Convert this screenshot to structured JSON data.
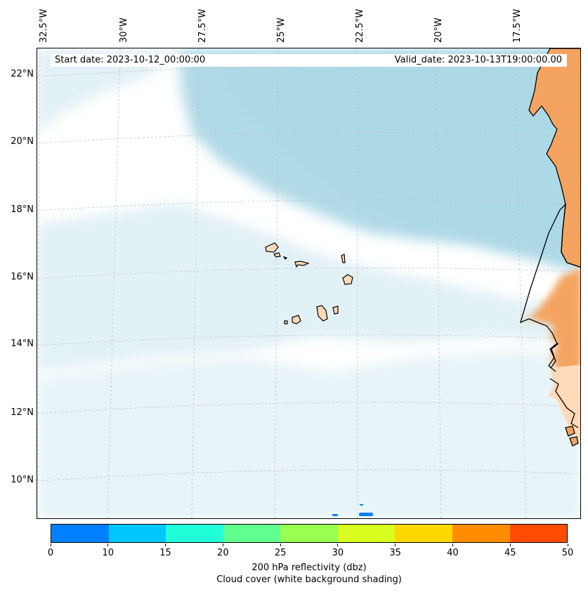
{
  "header": {
    "start_date": "Start date: 2023-10-12_00:00:00",
    "valid_date": "Valid_date: 2023-10-13T19:00:00.00"
  },
  "axes": {
    "lon_labels": [
      "32.5°W",
      "30°W",
      "27.5°W",
      "25°W",
      "22.5°W",
      "20°W",
      "17.5°W"
    ],
    "lat_labels": [
      "22°N",
      "20°N",
      "18°N",
      "16°N",
      "14°N",
      "12°N",
      "10°N"
    ]
  },
  "colorbar": {
    "ticks": [
      "0",
      "10",
      "15",
      "20",
      "25",
      "30",
      "35",
      "40",
      "45",
      "50"
    ],
    "colors": [
      "#0080ff",
      "#00c8ff",
      "#20ffd8",
      "#60ff90",
      "#98ff50",
      "#d8ff20",
      "#ffd800",
      "#ff8c00",
      "#ff4c00"
    ],
    "label_line1": "200 hPa reflectivity (dbz)",
    "label_line2": "Cloud cover (white background shading)"
  },
  "map_colors": {
    "cloud": "#add8e6",
    "land": "#f4a460",
    "island": "#ffdab9",
    "echo": "#0080ff"
  }
}
